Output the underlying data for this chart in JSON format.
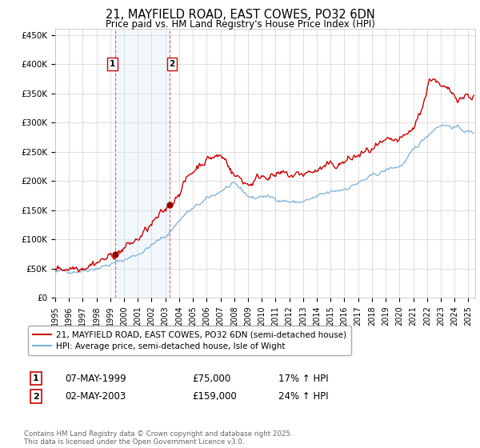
{
  "title_line1": "21, MAYFIELD ROAD, EAST COWES, PO32 6DN",
  "title_line2": "Price paid vs. HM Land Registry's House Price Index (HPI)",
  "ylabel_ticks": [
    "£0",
    "£50K",
    "£100K",
    "£150K",
    "£200K",
    "£250K",
    "£300K",
    "£350K",
    "£400K",
    "£450K"
  ],
  "ytick_values": [
    0,
    50000,
    100000,
    150000,
    200000,
    250000,
    300000,
    350000,
    400000,
    450000
  ],
  "xlim_start": 1995.0,
  "xlim_end": 2025.5,
  "ylim_min": 0,
  "ylim_max": 460000,
  "sale1_date": 1999.35,
  "sale1_price": 75000,
  "sale1_label": "1",
  "sale1_text": "07-MAY-1999",
  "sale1_amount": "£75,000",
  "sale1_hpi": "17% ↑ HPI",
  "sale2_date": 2003.33,
  "sale2_price": 159000,
  "sale2_label": "2",
  "sale2_text": "02-MAY-2003",
  "sale2_amount": "£159,000",
  "sale2_hpi": "24% ↑ HPI",
  "hpi_color": "#7bafd4",
  "price_color": "#cc0000",
  "sale_marker_color": "#990000",
  "vline_color": "#cc0000",
  "shade_color": "#daeaf7",
  "legend_line1": "21, MAYFIELD ROAD, EAST COWES, PO32 6DN (semi-detached house)",
  "legend_line2": "HPI: Average price, semi-detached house, Isle of Wight",
  "footer": "Contains HM Land Registry data © Crown copyright and database right 2025.\nThis data is licensed under the Open Government Licence v3.0.",
  "background_color": "#ffffff"
}
